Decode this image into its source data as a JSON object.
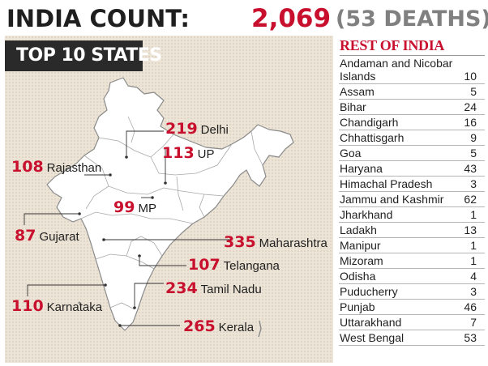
{
  "header": {
    "title": "INDIA COUNT:",
    "total": "2,069",
    "deaths": "(53 DEATHS)",
    "colors": {
      "accent": "#c8102e",
      "muted": "#808080",
      "dark": "#1f1f1f"
    }
  },
  "map": {
    "banner": "TOP 10 STATES",
    "panel_color": "#ece4d7",
    "top_states": [
      {
        "name": "Delhi",
        "count": "219"
      },
      {
        "name": "UP",
        "count": "113"
      },
      {
        "name": "Rajasthan",
        "count": "108"
      },
      {
        "name": "MP",
        "count": "99"
      },
      {
        "name": "Gujarat",
        "count": "87"
      },
      {
        "name": "Maharashtra",
        "count": "335"
      },
      {
        "name": "Telangana",
        "count": "107"
      },
      {
        "name": "Tamil Nadu",
        "count": "234"
      },
      {
        "name": "Karnataka",
        "count": "110"
      },
      {
        "name": "Kerala",
        "count": "265"
      }
    ]
  },
  "rest_of_india": {
    "title": "REST OF INDIA",
    "items": [
      {
        "name": "Andaman and Nicobar Islands",
        "count": "10"
      },
      {
        "name": "Assam",
        "count": "5"
      },
      {
        "name": "Bihar",
        "count": "24"
      },
      {
        "name": "Chandigarh",
        "count": "16"
      },
      {
        "name": "Chhattisgarh",
        "count": "9"
      },
      {
        "name": "Goa",
        "count": "5"
      },
      {
        "name": "Haryana",
        "count": "43"
      },
      {
        "name": "Himachal Pradesh",
        "count": "3"
      },
      {
        "name": "Jammu and Kashmir",
        "count": "62"
      },
      {
        "name": "Jharkhand",
        "count": "1"
      },
      {
        "name": "Ladakh",
        "count": "13"
      },
      {
        "name": "Manipur",
        "count": "1"
      },
      {
        "name": "Mizoram",
        "count": "1"
      },
      {
        "name": "Odisha",
        "count": "4"
      },
      {
        "name": "Puducherry",
        "count": "3"
      },
      {
        "name": "Punjab",
        "count": "46"
      },
      {
        "name": "Uttarakhand",
        "count": "7"
      },
      {
        "name": "West Bengal",
        "count": "53"
      }
    ]
  }
}
